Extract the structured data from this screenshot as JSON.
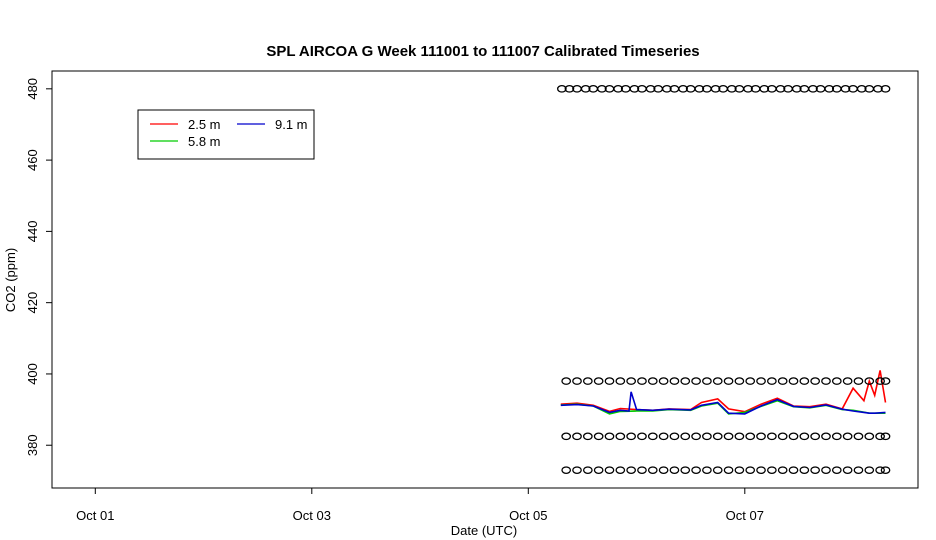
{
  "chart_data": {
    "type": "line",
    "title": "SPL AIRCOA G  Week 111001 to 111007  Calibrated Timeseries",
    "xlabel": "Date (UTC)",
    "ylabel": "CO2 (ppm)",
    "xlim": [
      -0.4,
      7.6
    ],
    "ylim": [
      368,
      485
    ],
    "x_ticks": [
      {
        "value": 0,
        "label": "Oct 01"
      },
      {
        "value": 2,
        "label": "Oct 03"
      },
      {
        "value": 4,
        "label": "Oct 05"
      },
      {
        "value": 6,
        "label": "Oct 07"
      }
    ],
    "y_ticks": [
      380,
      400,
      420,
      440,
      460,
      480
    ],
    "grid": false,
    "legend_position": "top-left",
    "legend": [
      {
        "name": "2.5 m",
        "color": "#ff0000"
      },
      {
        "name": "5.8 m",
        "color": "#00cc00"
      },
      {
        "name": "9.1 m",
        "color": "#0000cc"
      }
    ],
    "series": [
      {
        "name": "2.5 m",
        "color": "#ff0000",
        "x": [
          4.3,
          4.45,
          4.6,
          4.75,
          4.85,
          5.0,
          5.15,
          5.3,
          5.5,
          5.6,
          5.75,
          5.85,
          6.0,
          6.15,
          6.3,
          6.45,
          6.6,
          6.75,
          6.9,
          7.0,
          7.1,
          7.15,
          7.2,
          7.25,
          7.3
        ],
        "y": [
          391.5,
          391.8,
          391.2,
          389.5,
          390.3,
          390.0,
          389.8,
          390.2,
          390.0,
          392.0,
          393.0,
          390.2,
          389.4,
          391.5,
          393.2,
          391.0,
          390.8,
          391.5,
          390.2,
          396.0,
          392.5,
          398.0,
          394.0,
          401.0,
          392.0
        ]
      },
      {
        "name": "5.8 m",
        "color": "#00cc00",
        "x": [
          4.3,
          4.45,
          4.6,
          4.75,
          4.85,
          5.0,
          5.15,
          5.3,
          5.5,
          5.6,
          5.75,
          5.85,
          6.0,
          6.15,
          6.3,
          6.45,
          6.6,
          6.75,
          6.9,
          7.0,
          7.1,
          7.15,
          7.2,
          7.25,
          7.3
        ],
        "y": [
          391.3,
          391.5,
          391.0,
          388.8,
          389.5,
          389.6,
          389.6,
          390.0,
          389.8,
          391.0,
          391.8,
          388.8,
          389.2,
          390.9,
          392.5,
          390.8,
          390.5,
          391.2,
          390.0,
          389.8,
          389.3,
          389.0,
          389.0,
          389.0,
          389.0
        ]
      },
      {
        "name": "9.1 m",
        "color": "#0000cc",
        "x": [
          4.3,
          4.45,
          4.6,
          4.75,
          4.85,
          4.93,
          4.95,
          5.0,
          5.15,
          5.3,
          5.5,
          5.6,
          5.75,
          5.85,
          6.0,
          6.15,
          6.3,
          6.45,
          6.6,
          6.75,
          6.9,
          7.0,
          7.1,
          7.15,
          7.2,
          7.25,
          7.3
        ],
        "y": [
          391.2,
          391.4,
          391.0,
          389.2,
          389.8,
          389.6,
          395.0,
          390.0,
          389.8,
          390.1,
          389.9,
          391.2,
          392.0,
          389.0,
          388.8,
          391.0,
          392.8,
          390.9,
          390.6,
          391.3,
          390.1,
          389.6,
          389.2,
          389.0,
          389.0,
          389.1,
          389.2
        ]
      },
      {
        "name": "",
        "color": "#000000",
        "marker": "circle",
        "x": [
          4.31,
          4.38,
          4.45,
          4.53,
          4.6,
          4.68,
          4.75,
          4.83,
          4.9,
          4.98,
          5.05,
          5.13,
          5.2,
          5.28,
          5.35,
          5.43,
          5.5,
          5.58,
          5.65,
          5.73,
          5.8,
          5.88,
          5.95,
          6.03,
          6.1,
          6.18,
          6.25,
          6.33,
          6.4,
          6.48,
          6.55,
          6.63,
          6.7,
          6.78,
          6.85,
          6.93,
          7.0,
          7.08,
          7.15,
          7.23,
          7.3
        ],
        "y": [
          480,
          480,
          480,
          480,
          480,
          480,
          480,
          480,
          480,
          480,
          480,
          480,
          480,
          480,
          480,
          480,
          480,
          480,
          480,
          480,
          480,
          480,
          480,
          480,
          480,
          480,
          480,
          480,
          480,
          480,
          480,
          480,
          480,
          480,
          480,
          480,
          480,
          480,
          480,
          480,
          480
        ]
      },
      {
        "name": "",
        "color": "#000000",
        "marker": "circle",
        "x": [
          4.35,
          4.45,
          4.55,
          4.65,
          4.75,
          4.85,
          4.95,
          5.05,
          5.15,
          5.25,
          5.35,
          5.45,
          5.55,
          5.65,
          5.75,
          5.85,
          5.95,
          6.05,
          6.15,
          6.25,
          6.35,
          6.45,
          6.55,
          6.65,
          6.75,
          6.85,
          6.95,
          7.05,
          7.15,
          7.25,
          7.3
        ],
        "y": [
          398,
          398,
          398,
          398,
          398,
          398,
          398,
          398,
          398,
          398,
          398,
          398,
          398,
          398,
          398,
          398,
          398,
          398,
          398,
          398,
          398,
          398,
          398,
          398,
          398,
          398,
          398,
          398,
          398,
          398,
          398
        ]
      },
      {
        "name": "",
        "color": "#000000",
        "marker": "circle",
        "x": [
          4.35,
          4.45,
          4.55,
          4.65,
          4.75,
          4.85,
          4.95,
          5.05,
          5.15,
          5.25,
          5.35,
          5.45,
          5.55,
          5.65,
          5.75,
          5.85,
          5.95,
          6.05,
          6.15,
          6.25,
          6.35,
          6.45,
          6.55,
          6.65,
          6.75,
          6.85,
          6.95,
          7.05,
          7.15,
          7.25,
          7.3
        ],
        "y": [
          382.5,
          382.5,
          382.5,
          382.5,
          382.5,
          382.5,
          382.5,
          382.5,
          382.5,
          382.5,
          382.5,
          382.5,
          382.5,
          382.5,
          382.5,
          382.5,
          382.5,
          382.5,
          382.5,
          382.5,
          382.5,
          382.5,
          382.5,
          382.5,
          382.5,
          382.5,
          382.5,
          382.5,
          382.5,
          382.5,
          382.5
        ]
      },
      {
        "name": "",
        "color": "#000000",
        "marker": "circle",
        "x": [
          4.35,
          4.45,
          4.55,
          4.65,
          4.75,
          4.85,
          4.95,
          5.05,
          5.15,
          5.25,
          5.35,
          5.45,
          5.55,
          5.65,
          5.75,
          5.85,
          5.95,
          6.05,
          6.15,
          6.25,
          6.35,
          6.45,
          6.55,
          6.65,
          6.75,
          6.85,
          6.95,
          7.05,
          7.15,
          7.25,
          7.3
        ],
        "y": [
          373,
          373,
          373,
          373,
          373,
          373,
          373,
          373,
          373,
          373,
          373,
          373,
          373,
          373,
          373,
          373,
          373,
          373,
          373,
          373,
          373,
          373,
          373,
          373,
          373,
          373,
          373,
          373,
          373,
          373,
          373
        ]
      }
    ]
  }
}
